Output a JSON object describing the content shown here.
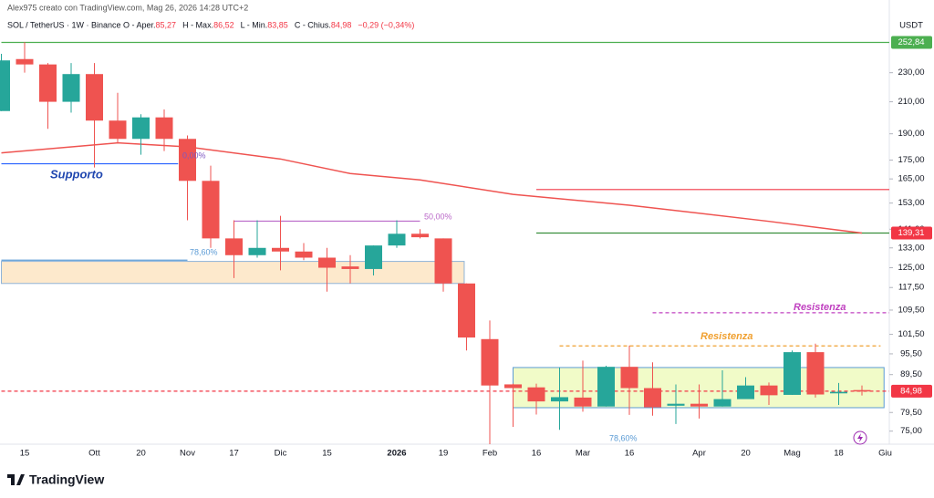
{
  "chart_data": {
    "type": "candlestick",
    "credit": "Alex975 creato con TradingView.com, Mag 26, 2026 14:28 UTC+2",
    "symbol": "SOL / TetherUS · 1W · Binance",
    "ohlc_legend": [
      {
        "label": "O - Aper.",
        "value": "85,27"
      },
      {
        "label": "H - Max.",
        "value": "86,52"
      },
      {
        "label": "L - Min.",
        "value": "83,85"
      },
      {
        "label": "C - Chius.",
        "value": "84,98"
      },
      {
        "label": "",
        "value": "−0,29 (−0,34%)"
      }
    ],
    "currency": "USDT",
    "logo": "TradingView",
    "categories": [
      null,
      "15",
      null,
      null,
      "Ott",
      null,
      "20",
      null,
      "Nov",
      null,
      "17",
      null,
      "Dic",
      null,
      "15",
      null,
      null,
      "2026",
      null,
      "19",
      null,
      "Feb",
      null,
      "16",
      null,
      "Mar",
      null,
      "16",
      null,
      null,
      "Apr",
      null,
      "20",
      null,
      "Mag",
      null,
      "18",
      null,
      "Giu"
    ],
    "open": [
      204,
      240,
      236,
      210,
      229,
      198,
      187,
      200,
      187,
      164,
      137,
      130,
      133,
      131.5,
      129,
      125.5,
      124.5,
      134,
      139,
      137,
      119,
      100,
      86.8,
      86,
      82.3,
      83.3,
      81,
      91.7,
      85.8,
      81.2,
      81.7,
      81,
      82.9,
      86.5,
      84,
      96,
      84.4,
      85.27,
      null
    ],
    "high": [
      244,
      253,
      237,
      237,
      237,
      216,
      202,
      205,
      189,
      172,
      145,
      145,
      147,
      135,
      133,
      130,
      134,
      145,
      141,
      137,
      119,
      106,
      87,
      87,
      91.5,
      93.5,
      92,
      98,
      93,
      86.8,
      86.8,
      90.7,
      88.8,
      87.3,
      96.5,
      98.6,
      87.2,
      86.52,
      null
    ],
    "low": [
      204,
      230,
      193,
      203,
      171,
      185,
      178,
      180,
      145,
      133,
      121,
      129,
      124,
      128,
      116,
      119,
      122,
      133,
      137,
      116,
      96.5,
      72,
      76,
      79,
      75.3,
      79.7,
      81,
      78.9,
      78.7,
      76.7,
      78,
      81,
      82.9,
      81.4,
      84,
      83.3,
      81.4,
      83.85,
      null
    ],
    "close": [
      239,
      236,
      210,
      229,
      198,
      187,
      200,
      187,
      164,
      137,
      130,
      133,
      131.5,
      129,
      125,
      124.5,
      134,
      139,
      137.5,
      119,
      100.5,
      86.5,
      85.8,
      82.3,
      83.4,
      81,
      91.7,
      85.8,
      80.8,
      81.7,
      81,
      82.9,
      86.5,
      83.9,
      96,
      84.1,
      84.8,
      84.98,
      null
    ],
    "up_color": "#26a69a",
    "down_color": "#ef5350",
    "moving_average": {
      "color": "#ef5350",
      "x": [
        0,
        5,
        8,
        12,
        15,
        18,
        22,
        27,
        33,
        37
      ],
      "values": [
        179,
        184.7,
        182.4,
        175.6,
        167.8,
        164.5,
        157.2,
        152,
        144.5,
        139.3
      ]
    },
    "log_scale": true,
    "ylim": [
      72,
      265
    ],
    "yticks": [
      {
        "value": 75,
        "label": "75,00"
      },
      {
        "value": 79.5,
        "label": "79,50"
      },
      {
        "value": 89.5,
        "label": "89,50"
      },
      {
        "value": 95.5,
        "label": "95,50"
      },
      {
        "value": 101.5,
        "label": "101,50"
      },
      {
        "value": 109.5,
        "label": "109,50"
      },
      {
        "value": 117.5,
        "label": "117,50"
      },
      {
        "value": 125,
        "label": "125,00"
      },
      {
        "value": 133,
        "label": "133,00"
      },
      {
        "value": 141,
        "label": "141,00"
      },
      {
        "value": 153,
        "label": "153,00"
      },
      {
        "value": 165,
        "label": "165,00"
      },
      {
        "value": 175,
        "label": "175,00"
      },
      {
        "value": 190,
        "label": "190,00"
      },
      {
        "value": 210,
        "label": "210,00"
      },
      {
        "value": 230,
        "label": "230,00"
      }
    ],
    "price_labels": [
      {
        "value": 252.84,
        "label": "252,84",
        "color": "#4caf50"
      },
      {
        "value": 139.31,
        "label": "139,31",
        "color": "#f23645"
      },
      {
        "value": 84.98,
        "label": "84,98",
        "color": "#f23645"
      }
    ],
    "levels": [
      {
        "value": 252.84,
        "start": 0,
        "end": 38.3,
        "color": "#4caf50",
        "dash": false
      },
      {
        "value": 173,
        "start": 0,
        "end": 7.6,
        "color": "#2962ff",
        "dash": false
      },
      {
        "value": 144.6,
        "start": 10,
        "end": 18,
        "color": "#ba68c8",
        "dash": false
      },
      {
        "value": 128,
        "start": 0,
        "end": 8,
        "color": "#5b9bd5",
        "dash": false
      },
      {
        "value": 159.6,
        "start": 23,
        "end": 38.3,
        "color": "#f23645",
        "dash": false
      },
      {
        "value": 139.31,
        "start": 23,
        "end": 38.3,
        "color": "#388e3c",
        "dash": false
      },
      {
        "value": 108.6,
        "start": 28,
        "end": 38.2,
        "color": "#c040c0",
        "dash": true
      },
      {
        "value": 97.9,
        "start": 24,
        "end": 37.8,
        "color": "#f0a030",
        "dash": true
      },
      {
        "value": 84.98,
        "start": 0,
        "end": 38.3,
        "color": "#f23645",
        "dash": true
      }
    ],
    "zones": [
      {
        "low": 119,
        "high": 127.5,
        "start": 0,
        "end": 19.9,
        "fill": "#fde9cc",
        "stroke": "#90b4d8"
      },
      {
        "low": 80.7,
        "high": 91.5,
        "start": 22,
        "end": 37.95,
        "fill": "#f1fbc8",
        "stroke": "#5b9bd5"
      }
    ],
    "annotations": [
      "Supporto",
      "0,00%",
      "50,00%",
      "78,60%",
      "Resistenza",
      "Resistenza",
      "78,60%"
    ]
  }
}
